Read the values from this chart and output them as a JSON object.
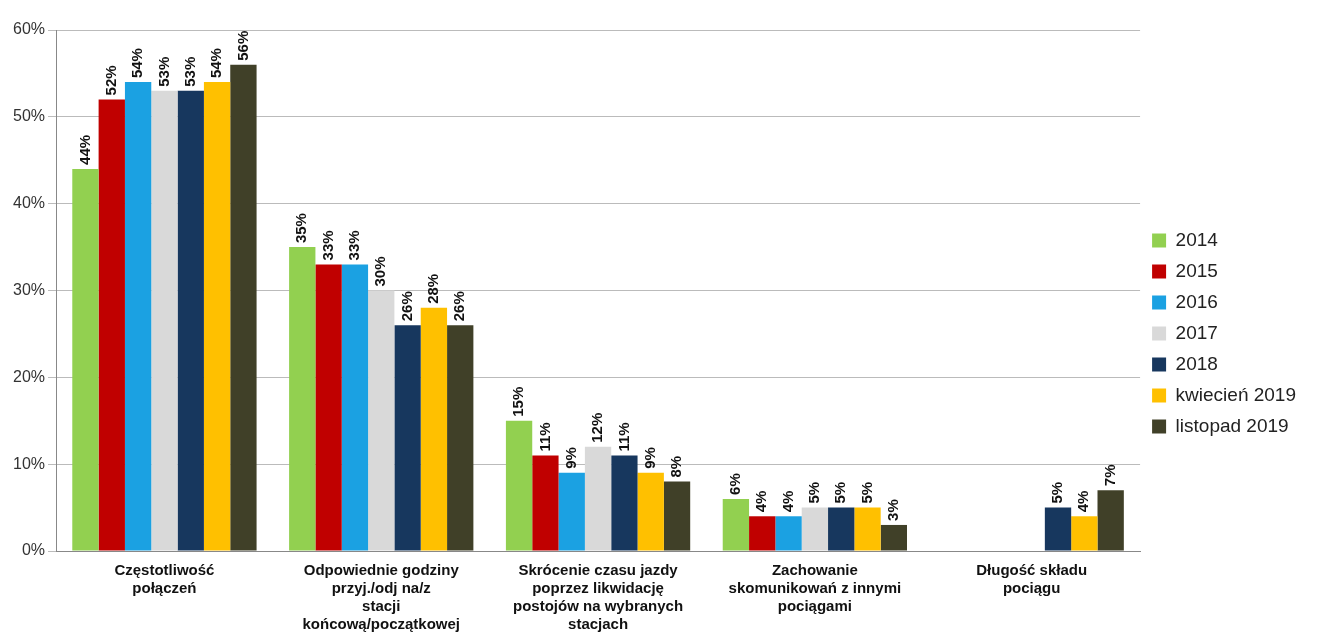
{
  "chart_data": {
    "type": "bar",
    "categories": [
      "Częstotliwość połączeń",
      "Odpowiednie godziny przyj./odj na/z stacji końcową/początkowej",
      "Skrócenie czasu jazdy poprzez likwidację postojów na wybranych stacjach",
      "Zachowanie skomunikowań z innymi pociągami",
      "Długość składu pociągu"
    ],
    "series": [
      {
        "name": "2014",
        "color": "#92d050",
        "values": [
          44,
          35,
          15,
          6,
          null
        ],
        "value_labels": [
          "44%",
          "35%",
          "15%",
          "6%",
          null
        ]
      },
      {
        "name": "2015",
        "color": "#c00000",
        "values": [
          52,
          33,
          11,
          4,
          null
        ],
        "value_labels": [
          "52%",
          "33%",
          "11%",
          "4%",
          null
        ]
      },
      {
        "name": "2016",
        "color": "#1ba1e2",
        "values": [
          54,
          33,
          9,
          4,
          null
        ],
        "value_labels": [
          "54%",
          "33%",
          "9%",
          "4%",
          null
        ]
      },
      {
        "name": "2017",
        "color": "#d9d9d9",
        "values": [
          53,
          30,
          12,
          5,
          null
        ],
        "value_labels": [
          "53%",
          "30%",
          "12%",
          "5%",
          null
        ]
      },
      {
        "name": "2018",
        "color": "#17375e",
        "values": [
          53,
          26,
          11,
          5,
          5
        ],
        "value_labels": [
          "53%",
          "26%",
          "11%",
          "5%",
          "5%"
        ]
      },
      {
        "name": "kwiecień 2019",
        "color": "#ffc000",
        "values": [
          54,
          28,
          9,
          5,
          4
        ],
        "value_labels": [
          "54%",
          "28%",
          "9%",
          "5%",
          "4%"
        ]
      },
      {
        "name": "listopad 2019",
        "color": "#404028",
        "values": [
          56,
          26,
          8,
          3,
          7
        ],
        "value_labels": [
          "56%",
          "26%",
          "8%",
          "3%",
          "7%"
        ]
      }
    ],
    "ylim": [
      0,
      60
    ],
    "yticks": [
      {
        "value": 0,
        "label": "0%"
      },
      {
        "value": 10,
        "label": "10%"
      },
      {
        "value": 20,
        "label": "20%"
      },
      {
        "value": 30,
        "label": "30%"
      },
      {
        "value": 40,
        "label": "40%"
      },
      {
        "value": 50,
        "label": "50%"
      },
      {
        "value": 60,
        "label": "60%"
      }
    ],
    "grid": "y",
    "legend": "right"
  }
}
